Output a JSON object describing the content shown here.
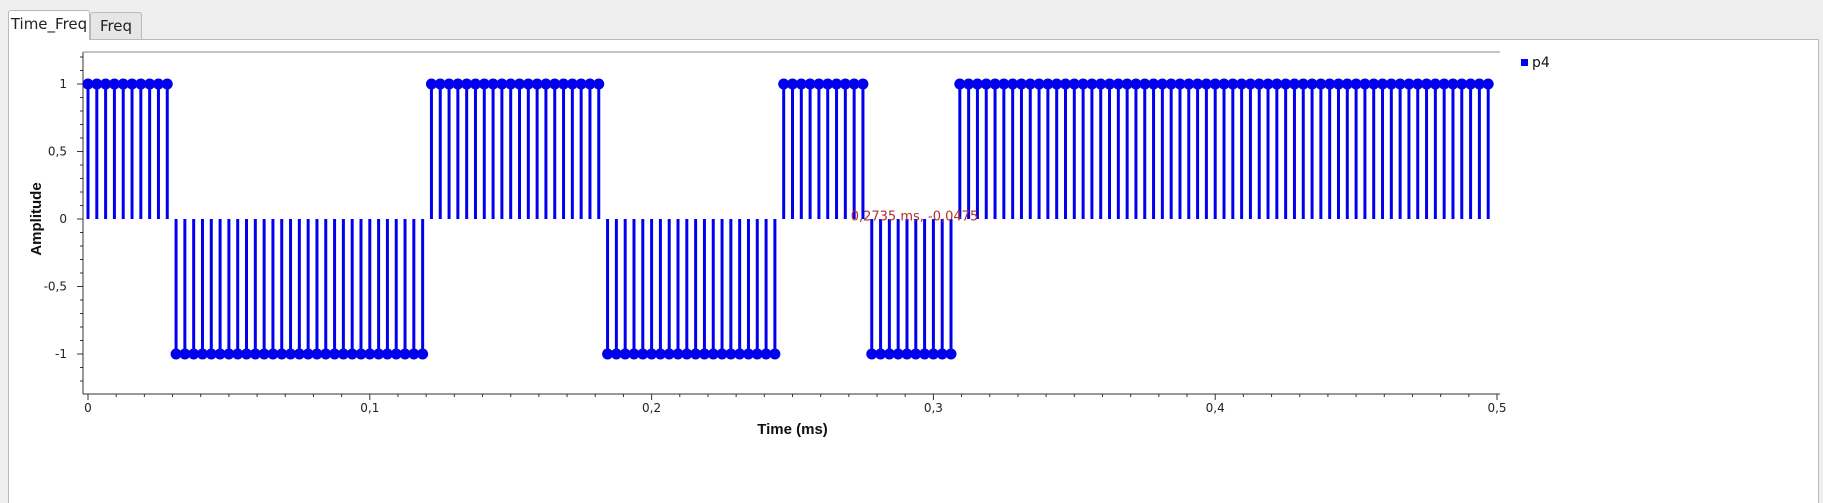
{
  "tabs": [
    {
      "label": "Time_Freq",
      "active": true
    },
    {
      "label": "Freq",
      "active": false
    }
  ],
  "colors": {
    "series": "#0000ee",
    "marker_text": "#b03030",
    "axis": "#333333"
  },
  "chart_data": {
    "type": "stem",
    "xlabel": "Time (ms)",
    "ylabel": "Amplitude",
    "xlim": [
      0,
      0.5
    ],
    "ylim": [
      -1.25,
      1.25
    ],
    "x_ticks": [
      {
        "v": 0,
        "label": "0"
      },
      {
        "v": 0.1,
        "label": "0,1"
      },
      {
        "v": 0.2,
        "label": "0,2"
      },
      {
        "v": 0.3,
        "label": "0,3"
      },
      {
        "v": 0.4,
        "label": "0,4"
      },
      {
        "v": 0.5,
        "label": "0,5"
      }
    ],
    "y_ticks": [
      {
        "v": 1,
        "label": "1"
      },
      {
        "v": 0.5,
        "label": "0,5"
      },
      {
        "v": 0,
        "label": "0"
      },
      {
        "v": -0.5,
        "label": "-0,5"
      },
      {
        "v": -1,
        "label": "-1"
      }
    ],
    "legend": {
      "position": "top-right",
      "entries": [
        "p4"
      ]
    },
    "annotation": {
      "text": "0,2735 ms, -0,0475",
      "x": 0.2735,
      "y": -0.0475
    },
    "sample_interval_ms": 0.003125,
    "series": [
      {
        "name": "p4",
        "values": [
          1,
          1,
          1,
          1,
          1,
          1,
          1,
          1,
          1,
          1,
          -1,
          -1,
          -1,
          -1,
          -1,
          -1,
          -1,
          -1,
          -1,
          -1,
          -1,
          -1,
          -1,
          -1,
          -1,
          -1,
          -1,
          -1,
          -1,
          -1,
          -1,
          -1,
          -1,
          -1,
          -1,
          -1,
          -1,
          -1,
          -1,
          1,
          1,
          1,
          1,
          1,
          1,
          1,
          1,
          1,
          1,
          1,
          1,
          1,
          1,
          1,
          1,
          1,
          1,
          1,
          1,
          -1,
          -1,
          -1,
          -1,
          -1,
          -1,
          -1,
          -1,
          -1,
          -1,
          -1,
          -1,
          -1,
          -1,
          -1,
          -1,
          -1,
          -1,
          -1,
          -1,
          1,
          1,
          1,
          1,
          1,
          1,
          1,
          1,
          1,
          1,
          -1,
          -1,
          -1,
          -1,
          -1,
          -1,
          -1,
          -1,
          -1,
          -1,
          1,
          1,
          1,
          1,
          1,
          1,
          1,
          1,
          1,
          1,
          1,
          1,
          1,
          1,
          1,
          1,
          1,
          1,
          1,
          1,
          1,
          1,
          1,
          1,
          1,
          1,
          1,
          1,
          1,
          1,
          1,
          1,
          1,
          1,
          1,
          1,
          1,
          1,
          1,
          1,
          1,
          1,
          1,
          1,
          1,
          1,
          1,
          1,
          1,
          1,
          1,
          1,
          1,
          1,
          1,
          1,
          1,
          1,
          1,
          1,
          1
        ]
      }
    ]
  }
}
